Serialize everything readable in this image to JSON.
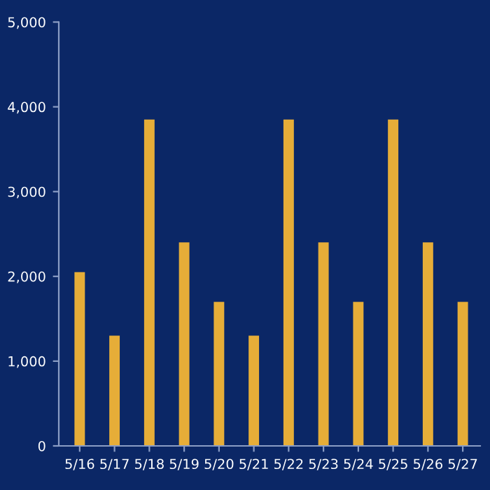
{
  "chart_data": {
    "type": "bar",
    "categories": [
      "5/16",
      "5/17",
      "5/18",
      "5/19",
      "5/20",
      "5/21",
      "5/22",
      "5/23",
      "5/24",
      "5/25",
      "5/26",
      "5/27"
    ],
    "values": [
      2050,
      1300,
      3850,
      2400,
      1700,
      1300,
      3850,
      2400,
      1700,
      3850,
      2400,
      1700
    ],
    "color": "#e6ad38",
    "ylim": [
      0,
      5000
    ],
    "yticks": [
      {
        "value": 0,
        "label": "0"
      },
      {
        "value": 1000,
        "label": "1,000"
      },
      {
        "value": 2000,
        "label": "2,000"
      },
      {
        "value": 3000,
        "label": "3,000"
      },
      {
        "value": 4000,
        "label": "4,000"
      },
      {
        "value": 5000,
        "label": "5,000"
      }
    ],
    "grid": false
  }
}
